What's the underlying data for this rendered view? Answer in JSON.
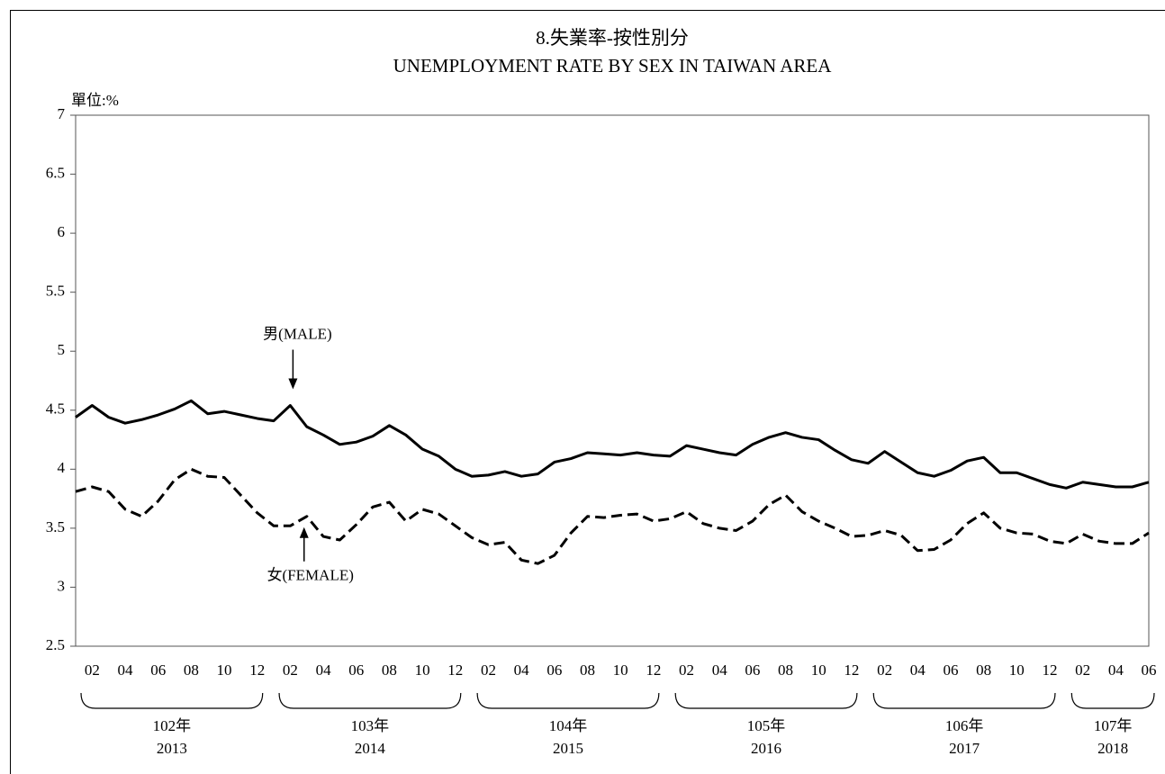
{
  "chart_data": {
    "type": "line",
    "title": "8.失業率-按性別分",
    "subtitle": "UNEMPLOYMENT RATE BY SEX IN TAIWAN AREA",
    "y_unit": "單位:%",
    "categories": [
      null,
      "02",
      null,
      "04",
      null,
      "06",
      null,
      "08",
      null,
      "10",
      null,
      "12",
      null,
      "02",
      null,
      "04",
      null,
      "06",
      null,
      "08",
      null,
      "10",
      null,
      "12",
      null,
      "02",
      null,
      "04",
      null,
      "06",
      null,
      "08",
      null,
      "10",
      null,
      "12",
      null,
      "02",
      null,
      "04",
      null,
      "06",
      null,
      "08",
      null,
      "10",
      null,
      "12",
      null,
      "02",
      null,
      "04",
      null,
      "06",
      null,
      "08",
      null,
      "10",
      null,
      "12",
      null,
      "02",
      null,
      "04",
      null,
      "06"
    ],
    "year_groups": [
      {
        "label": "102年",
        "year": "2013"
      },
      {
        "label": "103年",
        "year": "2014"
      },
      {
        "label": "104年",
        "year": "2015"
      },
      {
        "label": "105年",
        "year": "2016"
      },
      {
        "label": "106年",
        "year": "2017"
      },
      {
        "label": "107年",
        "year": "2018"
      }
    ],
    "series": [
      {
        "name": "男(MALE)",
        "color": "#000000",
        "dash": "solid",
        "values": [
          4.44,
          4.54,
          4.44,
          4.39,
          4.42,
          4.46,
          4.51,
          4.58,
          4.47,
          4.49,
          4.46,
          4.43,
          4.41,
          4.54,
          4.36,
          4.29,
          4.21,
          4.23,
          4.28,
          4.37,
          4.29,
          4.17,
          4.11,
          4.0,
          3.94,
          3.95,
          3.98,
          3.94,
          3.96,
          4.06,
          4.09,
          4.14,
          4.13,
          4.12,
          4.14,
          4.12,
          4.11,
          4.2,
          4.17,
          4.14,
          4.12,
          4.21,
          4.27,
          4.31,
          4.27,
          4.25,
          4.16,
          4.08,
          4.05,
          4.15,
          4.06,
          3.97,
          3.94,
          3.99,
          4.07,
          4.1,
          3.97,
          3.97,
          3.92,
          3.87,
          3.84,
          3.89,
          3.87,
          3.85,
          3.85,
          3.89
        ]
      },
      {
        "name": "女(FEMALE)",
        "color": "#000000",
        "dash": "dashed",
        "values": [
          3.81,
          3.85,
          3.81,
          3.66,
          3.6,
          3.73,
          3.91,
          4.0,
          3.94,
          3.93,
          3.78,
          3.63,
          3.52,
          3.52,
          3.6,
          3.43,
          3.4,
          3.53,
          3.68,
          3.72,
          3.56,
          3.66,
          3.62,
          3.52,
          3.42,
          3.36,
          3.38,
          3.23,
          3.2,
          3.27,
          3.46,
          3.6,
          3.59,
          3.61,
          3.62,
          3.56,
          3.58,
          3.64,
          3.54,
          3.5,
          3.48,
          3.56,
          3.7,
          3.78,
          3.64,
          3.56,
          3.5,
          3.43,
          3.44,
          3.48,
          3.44,
          3.31,
          3.32,
          3.4,
          3.54,
          3.63,
          3.5,
          3.46,
          3.45,
          3.39,
          3.37,
          3.45,
          3.39,
          3.37,
          3.37,
          3.46
        ]
      }
    ],
    "ylim": [
      2.5,
      7
    ],
    "yticks": [
      2.5,
      3,
      3.5,
      4,
      4.5,
      5,
      5.5,
      6,
      6.5,
      7
    ],
    "grid": false
  }
}
